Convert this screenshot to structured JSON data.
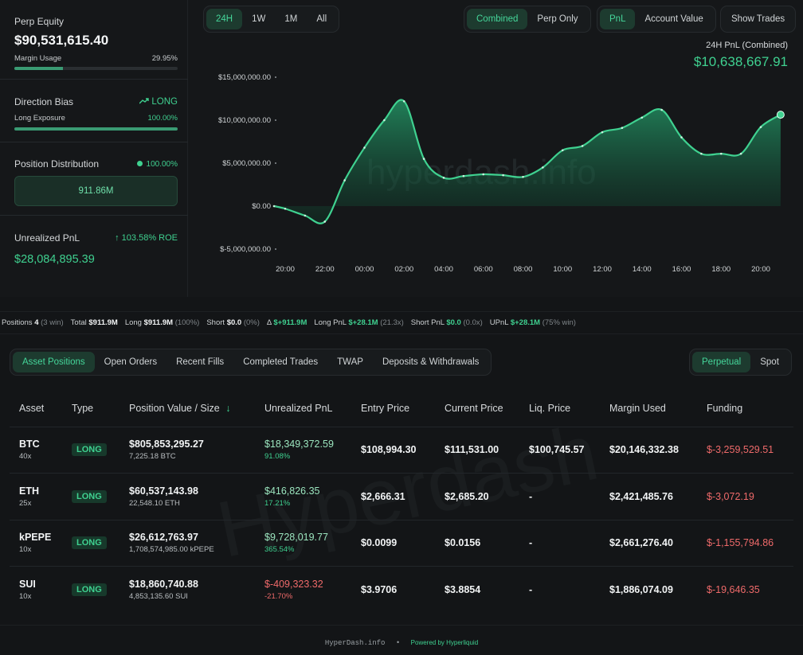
{
  "perp_equity": {
    "label": "Perp Equity",
    "value": "$90,531,615.40",
    "margin_label": "Margin Usage",
    "margin_value": "29.95%",
    "margin_fraction": 0.2995
  },
  "direction": {
    "label": "Direction Bias",
    "bias": "LONG",
    "exposure_label": "Long Exposure",
    "exposure_value": "100.00%",
    "exposure_fraction": 1.0
  },
  "distribution": {
    "label": "Position Distribution",
    "pct": "100.00%",
    "bar_value": "911.86M"
  },
  "unrealized": {
    "label": "Unrealized PnL",
    "roe": "103.58% ROE",
    "value": "$28,084,895.39"
  },
  "range_tabs": [
    "24H",
    "1W",
    "1M",
    "All"
  ],
  "mode_tabs": [
    "Combined",
    "Perp Only"
  ],
  "metric_tabs": [
    "PnL",
    "Account Value"
  ],
  "show_trades": "Show Trades",
  "pnl_header": {
    "label": "24H PnL (Combined)",
    "value": "$10,638,667.91"
  },
  "watermark": "hyperdash.info",
  "chart_data": {
    "type": "area",
    "x": [
      "19:30",
      "20:00",
      "21:00",
      "22:00",
      "23:00",
      "00:00",
      "01:00",
      "02:00",
      "03:00",
      "04:00",
      "05:00",
      "06:00",
      "07:00",
      "08:00",
      "09:00",
      "10:00",
      "11:00",
      "12:00",
      "13:00",
      "14:00",
      "15:00",
      "16:00",
      "17:00",
      "18:00",
      "19:00",
      "20:00",
      "21:00"
    ],
    "values": [
      0,
      -300000,
      -1100000,
      -1800000,
      3000000,
      6800000,
      10000000,
      12200000,
      5500000,
      3300000,
      3500000,
      3700000,
      3600000,
      3400000,
      4500000,
      6500000,
      7000000,
      8600000,
      9100000,
      10300000,
      11200000,
      8000000,
      6100000,
      6100000,
      6100000,
      9200000,
      10638667.91
    ],
    "y_ticks": [
      "$15,000,000.00",
      "$10,000,000.00",
      "$5,000,000.00",
      "$0.00",
      "$-5,000,000.00"
    ],
    "x_ticks": [
      "20:00",
      "22:00",
      "00:00",
      "02:00",
      "04:00",
      "06:00",
      "08:00",
      "10:00",
      "12:00",
      "14:00",
      "16:00",
      "18:00",
      "20:00"
    ],
    "ylim": [
      -5000000,
      15000000
    ],
    "color": "#3fd190",
    "grid": false
  },
  "stats": [
    {
      "label": "Positions",
      "value": "4",
      "extra": "(3 win)"
    },
    {
      "label": "Total",
      "value": "$911.9M",
      "extra": ""
    },
    {
      "label": "Long",
      "value": "$911.9M",
      "extra": "(100%)"
    },
    {
      "label": "Short",
      "value": "$0.0",
      "extra": "(0%)"
    },
    {
      "label": "Δ",
      "value": "$+911.9M",
      "extra": "",
      "green": true
    },
    {
      "label": "Long PnL",
      "value": "$+28.1M",
      "extra": "(21.3x)",
      "green": true
    },
    {
      "label": "Short PnL",
      "value": "$0.0",
      "extra": "(0.0x)",
      "green": true
    },
    {
      "label": "UPnL",
      "value": "$+28.1M",
      "extra": "(75% win)",
      "green": true
    }
  ],
  "position_tabs": [
    "Asset Positions",
    "Open Orders",
    "Recent Fills",
    "Completed Trades",
    "TWAP",
    "Deposits & Withdrawals"
  ],
  "market_tabs": [
    "Perpetual",
    "Spot"
  ],
  "table": {
    "headers": [
      "Asset",
      "Type",
      "Position Value / Size",
      "Unrealized PnL",
      "Entry Price",
      "Current Price",
      "Liq. Price",
      "Margin Used",
      "Funding"
    ],
    "sort_icon": "↓",
    "rows": [
      {
        "asset": "BTC",
        "lev": "40x",
        "type": "LONG",
        "value": "$805,853,295.27",
        "size": "7,225.18 BTC",
        "pnl": "$18,349,372.59",
        "pnl_pct": "91.08%",
        "pnl_neg": false,
        "entry": "$108,994.30",
        "current": "$111,531.00",
        "liq": "$100,745.57",
        "margin": "$20,146,332.38",
        "funding": "$-3,259,529.51"
      },
      {
        "asset": "ETH",
        "lev": "25x",
        "type": "LONG",
        "value": "$60,537,143.98",
        "size": "22,548.10 ETH",
        "pnl": "$416,826.35",
        "pnl_pct": "17.21%",
        "pnl_neg": false,
        "entry": "$2,666.31",
        "current": "$2,685.20",
        "liq": "-",
        "margin": "$2,421,485.76",
        "funding": "$-3,072.19"
      },
      {
        "asset": "kPEPE",
        "lev": "10x",
        "type": "LONG",
        "value": "$26,612,763.97",
        "size": "1,708,574,985.00 kPEPE",
        "pnl": "$9,728,019.77",
        "pnl_pct": "365.54%",
        "pnl_neg": false,
        "entry": "$0.0099",
        "current": "$0.0156",
        "liq": "-",
        "margin": "$2,661,276.40",
        "funding": "$-1,155,794.86"
      },
      {
        "asset": "SUI",
        "lev": "10x",
        "type": "LONG",
        "value": "$18,860,740.88",
        "size": "4,853,135.60 SUI",
        "pnl": "$-409,323.32",
        "pnl_pct": "-21.70%",
        "pnl_neg": true,
        "entry": "$3.9706",
        "current": "$3.8854",
        "liq": "-",
        "margin": "$1,886,074.09",
        "funding": "$-19,646.35"
      }
    ]
  },
  "table_watermark": "Hyperdash",
  "footer": {
    "site": "HyperDash.info",
    "powered": "Powered by Hyperliquid"
  }
}
